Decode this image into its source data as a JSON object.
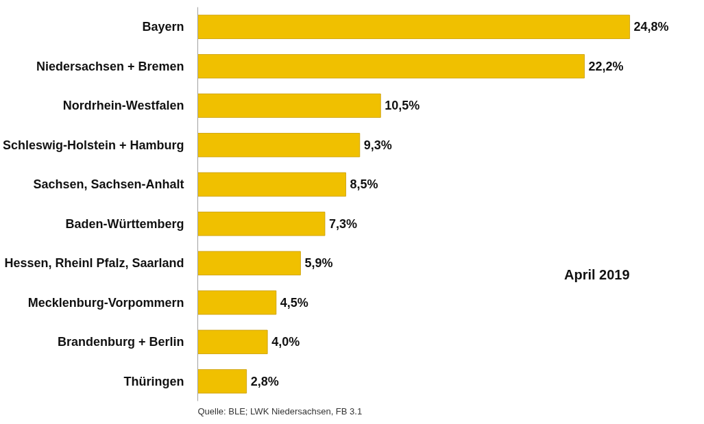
{
  "chart_data": {
    "type": "bar",
    "orientation": "horizontal",
    "categories": [
      "Bayern",
      "Niedersachsen + Bremen",
      "Nordrhein-Westfalen",
      "Schleswig-Holstein + Hamburg",
      "Sachsen, Sachsen-Anhalt",
      "Baden-Württemberg",
      "Hessen, Rheinl Pfalz, Saarland",
      "Mecklenburg-Vorpommern",
      "Brandenburg + Berlin",
      "Thüringen"
    ],
    "values": [
      24.8,
      22.2,
      10.5,
      9.3,
      8.5,
      7.3,
      5.9,
      4.5,
      4.0,
      2.8
    ],
    "value_labels": [
      "24,8%",
      "22,2%",
      "10,5%",
      "9,3%",
      "8,5%",
      "7,3%",
      "5,9%",
      "4,5%",
      "4,0%",
      "2,8%"
    ],
    "color": "#f0c000",
    "annotations": [
      "April 2019",
      "Quelle: BLE; LWK Niedersachsen, FB 3.1"
    ],
    "grid": false
  }
}
